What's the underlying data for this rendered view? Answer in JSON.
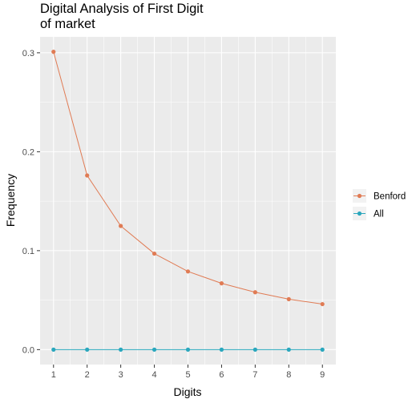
{
  "chart_data": {
    "type": "line",
    "title_lines": [
      "Digital Analysis of First Digit",
      "of market"
    ],
    "xlabel": "Digits",
    "ylabel": "Frequency",
    "x": [
      1,
      2,
      3,
      4,
      5,
      6,
      7,
      8,
      9
    ],
    "xlim": [
      0.6,
      9.4
    ],
    "ylim": [
      -0.0151,
      0.3161
    ],
    "x_ticks": [
      "1",
      "2",
      "3",
      "4",
      "5",
      "6",
      "7",
      "8",
      "9"
    ],
    "y_ticks": [
      0.0,
      0.1,
      0.2,
      0.3
    ],
    "y_tick_labels": [
      "0.0",
      "0.1",
      "0.2",
      "0.3"
    ],
    "grid": true,
    "legend_position": "right",
    "series": [
      {
        "name": "Benford",
        "color": "#E07B54",
        "values": [
          0.301,
          0.176,
          0.125,
          0.097,
          0.079,
          0.067,
          0.058,
          0.051,
          0.046
        ]
      },
      {
        "name": "All",
        "color": "#2AA7BD",
        "values": [
          0,
          0,
          0,
          0,
          0,
          0,
          0,
          0,
          0
        ]
      }
    ],
    "colors": {
      "panel_bg": "#EBEBEB",
      "grid": "#FFFFFF",
      "tick_text": "#4D4D4D"
    }
  }
}
